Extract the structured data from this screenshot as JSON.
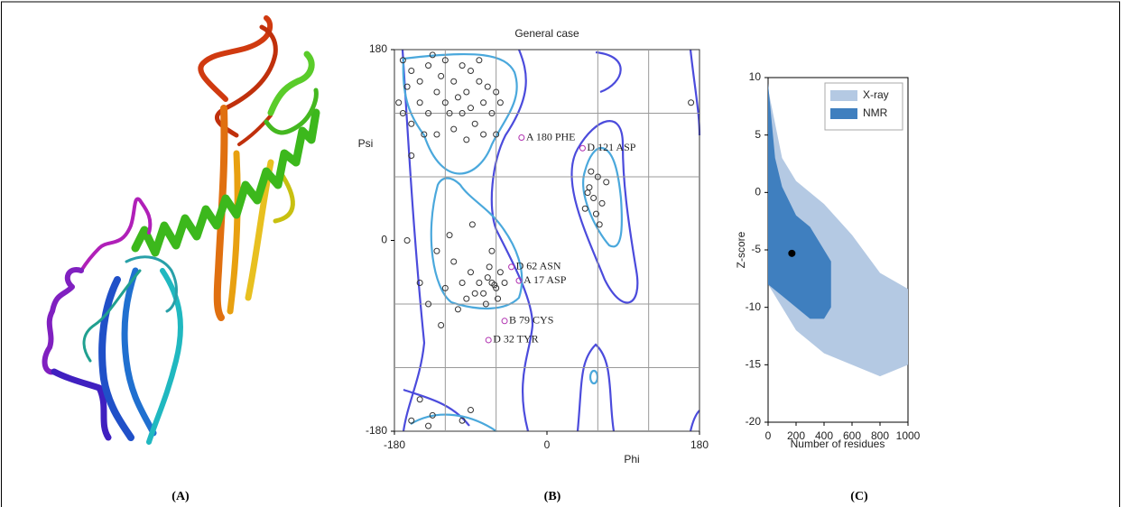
{
  "panel_labels": [
    "(A)",
    "(B)",
    "(C)"
  ],
  "chart_data": [
    {
      "type": "scatter",
      "title": "General case",
      "xlabel": "Phi",
      "ylabel": "Psi",
      "xlim": [
        -180,
        180
      ],
      "ylim": [
        -180,
        180
      ],
      "xticks": [
        -180,
        0,
        180
      ],
      "yticks": [
        -180,
        0,
        180
      ],
      "xgrid": [
        -120,
        -60,
        60,
        120
      ],
      "ygrid": [
        -120,
        -60,
        60,
        120
      ],
      "grid_color": "#999999",
      "series": [
        {
          "color": "#333333",
          "marker": "open",
          "x": [
            -160,
            -150,
            -140,
            -130,
            -120,
            -110,
            -100,
            -95,
            -90,
            -85,
            -80,
            -75,
            -70,
            -65,
            -60,
            -140,
            -150,
            -165,
            -170,
            -120,
            -110,
            -130,
            -100,
            -90,
            -75,
            -160,
            -145,
            -125,
            -105,
            -115,
            -135,
            -80,
            -55,
            -60,
            -95,
            -170,
            -65,
            -60,
            -70,
            -75,
            -55,
            -62,
            -68,
            -80,
            -58,
            -90,
            -85,
            -100,
            -110,
            -72,
            -50,
            -65,
            -95,
            -120,
            -105,
            -130,
            -115,
            -88,
            -140,
            50,
            55,
            60,
            45,
            65,
            58,
            70,
            52,
            62,
            48,
            -165,
            -150,
            -160,
            -140,
            -100,
            -90,
            -175,
            -160,
            -125,
            -150,
            170,
            -135
          ],
          "values": [
            160,
            150,
            165,
            140,
            130,
            150,
            120,
            140,
            160,
            110,
            150,
            130,
            145,
            120,
            140,
            120,
            130,
            145,
            170,
            170,
            105,
            100,
            165,
            125,
            100,
            110,
            100,
            155,
            135,
            120,
            175,
            170,
            130,
            100,
            95,
            120,
            -40,
            -45,
            -35,
            -50,
            -30,
            -42,
            -25,
            -40,
            -55,
            -30,
            -50,
            -40,
            -20,
            -60,
            -40,
            -10,
            -55,
            -45,
            -65,
            -10,
            5,
            15,
            -60,
            50,
            40,
            60,
            30,
            35,
            25,
            55,
            65,
            15,
            45,
            0,
            -150,
            -170,
            -175,
            -170,
            -160,
            130,
            80,
            -80,
            -40,
            130,
            -165
          ]
        },
        {
          "color": "#b030b0",
          "marker": "open",
          "x": [
            -30,
            42,
            -42,
            -33,
            -50,
            -69
          ],
          "values": [
            97,
            87,
            -25,
            -38,
            -76,
            -94
          ],
          "point_labels": [
            "A  180 PHE",
            "D  121 ASP",
            "D  62 ASN",
            "A  17 ASP",
            "B  79 CYS",
            "D  32 TYR"
          ]
        }
      ]
    },
    {
      "type": "scatter",
      "xlabel": "Number of residues",
      "ylabel": "Z-score",
      "xlim": [
        0,
        1000
      ],
      "ylim": [
        -20,
        10
      ],
      "xticks": [
        0,
        200,
        400,
        600,
        800,
        1000
      ],
      "yticks": [
        -20,
        -15,
        -10,
        -5,
        0,
        5,
        10
      ],
      "legend": "upper right",
      "series": [
        {
          "name": "X-ray",
          "color": "#b4c9e3",
          "x": [
            0,
            100,
            200,
            400,
            600,
            800,
            1000
          ],
          "high": [
            9,
            3,
            1,
            -1,
            -3.7,
            -7,
            -8.4
          ],
          "low": [
            -8,
            -10,
            -12,
            -14,
            -15,
            -16,
            -15
          ]
        },
        {
          "name": "NMR",
          "color": "#3f7fbf",
          "x": [
            0,
            50,
            100,
            200,
            300,
            400,
            450
          ],
          "high": [
            9.5,
            3,
            0.5,
            -2,
            -3,
            -5,
            -6
          ],
          "low": [
            -8,
            -8.5,
            -9,
            -10,
            -11,
            -11,
            -10
          ]
        },
        {
          "color": "#000000",
          "marker": "filled",
          "x": [
            170
          ],
          "values": [
            -5.3
          ]
        }
      ]
    }
  ]
}
